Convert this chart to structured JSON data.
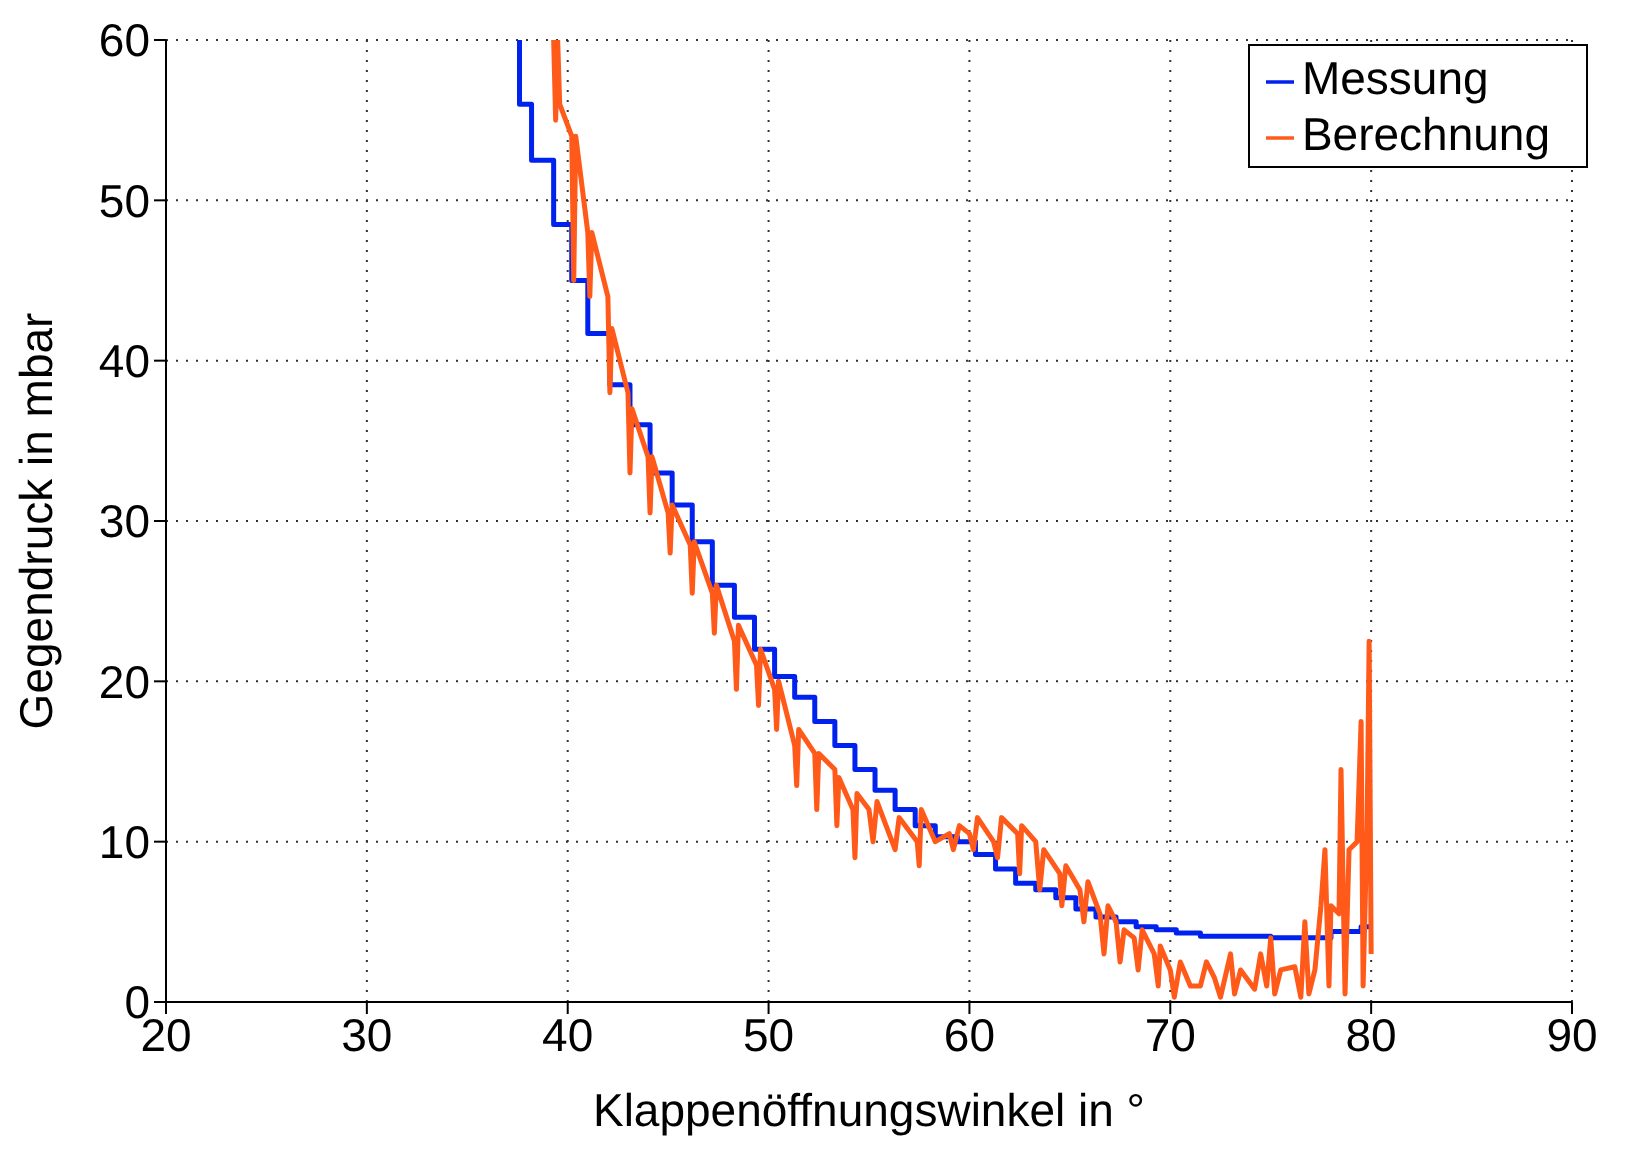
{
  "chart_data": {
    "type": "line",
    "xlabel": "Klappenöffnungswinkel in °",
    "ylabel": "Gegendruck in mbar",
    "xlim": [
      20,
      90
    ],
    "ylim": [
      0,
      60
    ],
    "xticks": [
      20,
      30,
      40,
      50,
      60,
      70,
      80,
      90
    ],
    "yticks": [
      0,
      10,
      20,
      30,
      40,
      50,
      60
    ],
    "grid": true,
    "legend": "top right",
    "line_style": "solid",
    "marker": "none",
    "series": [
      {
        "name": "Messung",
        "type": "step",
        "color": "#0022ee",
        "x": [
          37.5,
          37.6,
          38.2,
          39.3,
          40.2,
          41.0,
          42.1,
          43.1,
          44.1,
          45.2,
          46.2,
          47.2,
          48.3,
          49.3,
          50.3,
          51.3,
          52.3,
          53.3,
          54.3,
          55.3,
          56.3,
          57.3,
          58.3,
          59.4,
          60.3,
          61.3,
          62.3,
          63.3,
          64.3,
          65.3,
          66.3,
          67.3,
          68.3,
          69.3,
          70.3,
          71.5,
          73,
          75,
          77,
          78,
          79.5,
          80
        ],
        "values": [
          60,
          56,
          52.5,
          48.5,
          45,
          41.7,
          38.5,
          36,
          33,
          31,
          28.7,
          26,
          24,
          22,
          20.3,
          19,
          17.5,
          16,
          14.5,
          13.2,
          12,
          11,
          10.3,
          10,
          9.2,
          8.3,
          7.4,
          7,
          6.5,
          5.8,
          5.3,
          5,
          4.7,
          4.5,
          4.3,
          4.1,
          4.1,
          4,
          4,
          4.4,
          4.7,
          4.7
        ]
      },
      {
        "name": "Berechnung",
        "type": "line",
        "color": "#ff5a1a",
        "x": [
          39.3,
          39.4,
          39.5,
          39.6,
          40.2,
          40.3,
          40.4,
          41.0,
          41.1,
          41.2,
          42.0,
          42.1,
          42.2,
          43.0,
          43.1,
          43.2,
          44.0,
          44.1,
          44.2,
          45.0,
          45.1,
          45.2,
          46.1,
          46.2,
          46.3,
          47.2,
          47.3,
          47.4,
          48.3,
          48.4,
          48.5,
          49.4,
          49.5,
          49.6,
          50.3,
          50.4,
          50.5,
          51.3,
          51.4,
          51.5,
          52.3,
          52.4,
          52.5,
          53.3,
          53.4,
          53.5,
          54.2,
          54.3,
          54.4,
          55.0,
          55.2,
          55.4,
          56.0,
          56.3,
          56.5,
          57.4,
          57.5,
          57.6,
          58.3,
          59.0,
          59.2,
          59.5,
          60.0,
          60.2,
          60.4,
          61.2,
          61.4,
          61.6,
          62.4,
          62.5,
          62.6,
          63.3,
          63.5,
          63.7,
          64.5,
          64.6,
          64.8,
          65.5,
          65.7,
          65.9,
          66.5,
          66.7,
          66.9,
          67.3,
          67.5,
          67.7,
          68.2,
          68.4,
          68.6,
          69.2,
          69.4,
          69.5,
          70.0,
          70.2,
          70.5,
          71.0,
          71.5,
          71.8,
          72.2,
          72.5,
          73.0,
          73.2,
          73.5,
          74.2,
          74.5,
          74.8,
          75.0,
          75.2,
          75.5,
          76.2,
          76.5,
          76.7,
          76.9,
          77.2,
          77.5,
          77.7,
          77.9,
          78.0,
          78.4,
          78.5,
          78.7,
          78.9,
          79.3,
          79.5,
          79.6,
          79.8,
          79.9,
          80.0
        ],
        "values": [
          60,
          55,
          60,
          56,
          54,
          45,
          54,
          48,
          44,
          48,
          44,
          38,
          42,
          38,
          33,
          37,
          34,
          30.5,
          34,
          30.5,
          28,
          31,
          28.5,
          25.5,
          28.7,
          25.5,
          23,
          26,
          22.5,
          19.5,
          23.5,
          21,
          18.5,
          22,
          19.5,
          17,
          20,
          16,
          13.5,
          17,
          15.5,
          12,
          15.5,
          14.5,
          11,
          14,
          12,
          9,
          13,
          12,
          10,
          12.5,
          10.5,
          9.5,
          11.5,
          10,
          8.5,
          12,
          10,
          10.5,
          9.5,
          11,
          10.5,
          9.5,
          11.5,
          10,
          9,
          11.5,
          10.5,
          8,
          11,
          10,
          7,
          9.5,
          8,
          6,
          8.5,
          7,
          5,
          7.5,
          5.5,
          3,
          6,
          5,
          2.5,
          4.5,
          4,
          2,
          4.5,
          3,
          1,
          3.5,
          2,
          0.3,
          2.5,
          1,
          1,
          2.5,
          1.5,
          0.3,
          3,
          0.5,
          2,
          0.8,
          3,
          1,
          4,
          0.5,
          2,
          2.2,
          0.3,
          5,
          0.5,
          2,
          6,
          9.5,
          1,
          6,
          5.5,
          14.5,
          0.5,
          9.5,
          10,
          17.5,
          1,
          11,
          22.5,
          3
        ]
      }
    ]
  }
}
